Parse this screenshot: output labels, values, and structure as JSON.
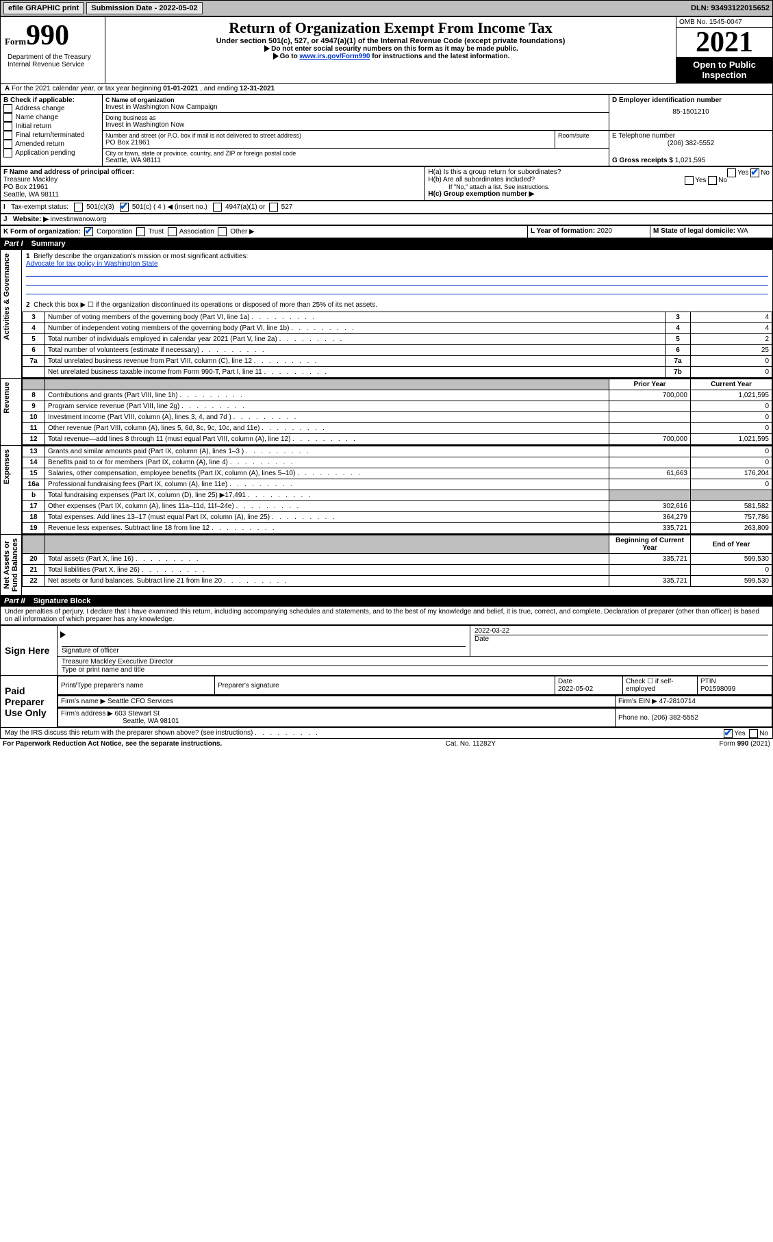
{
  "topbar": {
    "efile": "efile GRAPHIC print",
    "submission": "Submission Date - 2022-05-02",
    "dln": "DLN: 93493122015652"
  },
  "header": {
    "form_prefix": "Form",
    "form_number": "990",
    "title": "Return of Organization Exempt From Income Tax",
    "subtitle": "Under section 501(c), 527, or 4947(a)(1) of the Internal Revenue Code (except private foundations)",
    "note1": "Do not enter social security numbers on this form as it may be made public.",
    "note2_pre": "Go to ",
    "note2_link": "www.irs.gov/Form990",
    "note2_post": " for instructions and the latest information.",
    "dept": "Department of the Treasury\nInternal Revenue Service",
    "omb": "OMB No. 1545-0047",
    "year": "2021",
    "open": "Open to Public Inspection"
  },
  "periodA": {
    "text_pre": "For the 2021 calendar year, or tax year beginning ",
    "begin": "01-01-2021",
    "mid": " , and ending ",
    "end": "12-31-2021"
  },
  "boxB": {
    "label": "B Check if applicable:",
    "opts": [
      "Address change",
      "Name change",
      "Initial return",
      "Final return/terminated",
      "Amended return",
      "Application pending"
    ]
  },
  "boxC": {
    "name_lbl": "C Name of organization",
    "name": "Invest in Washington Now Campaign",
    "dba_lbl": "Doing business as",
    "dba": "Invest in Washington Now",
    "street_lbl": "Number and street (or P.O. box if mail is not delivered to street address)",
    "room_lbl": "Room/suite",
    "street": "PO Box 21961",
    "city_lbl": "City or town, state or province, country, and ZIP or foreign postal code",
    "city": "Seattle, WA  98111"
  },
  "boxD": {
    "lbl": "D Employer identification number",
    "val": "85-1501210"
  },
  "boxE": {
    "lbl": "E Telephone number",
    "val": "(206) 382-5552"
  },
  "boxG": {
    "lbl": "G Gross receipts $",
    "val": "1,021,595"
  },
  "boxF": {
    "lbl": "F Name and address of principal officer:",
    "name": "Treasure Mackley",
    "addr1": "PO Box 21961",
    "addr2": "Seattle, WA  98111"
  },
  "boxH": {
    "a": "H(a)  Is this a group return for subordinates?",
    "b": "H(b)  Are all subordinates included?",
    "bnote": "If \"No,\" attach a list. See instructions.",
    "c": "H(c)  Group exemption number ▶",
    "yes": "Yes",
    "no": "No"
  },
  "boxI": {
    "lbl": "Tax-exempt status:",
    "o1": "501(c)(3)",
    "o2": "501(c) ( 4 ) ◀ (insert no.)",
    "o3": "4947(a)(1) or",
    "o4": "527"
  },
  "boxJ": {
    "lbl": "Website: ▶",
    "val": "investinwanow.org"
  },
  "boxK": {
    "lbl": "K Form of organization:",
    "o1": "Corporation",
    "o2": "Trust",
    "o3": "Association",
    "o4": "Other ▶"
  },
  "boxL": {
    "lbl": "L Year of formation:",
    "val": "2020"
  },
  "boxM": {
    "lbl": "M State of legal domicile:",
    "val": "WA"
  },
  "part1": {
    "no": "Part I",
    "title": "Summary"
  },
  "summary": {
    "q1_lbl": "Briefly describe the organization's mission or most significant activities:",
    "q1_link": "Advocate for tax policy in Washington State",
    "q2": "Check this box ▶ ☐  if the organization discontinued its operations or disposed of more than 25% of its net assets.",
    "rows_gov": [
      {
        "n": "3",
        "d": "Number of voting members of the governing body (Part VI, line 1a)",
        "b": "3",
        "v": "4"
      },
      {
        "n": "4",
        "d": "Number of independent voting members of the governing body (Part VI, line 1b)",
        "b": "4",
        "v": "4"
      },
      {
        "n": "5",
        "d": "Total number of individuals employed in calendar year 2021 (Part V, line 2a)",
        "b": "5",
        "v": "2"
      },
      {
        "n": "6",
        "d": "Total number of volunteers (estimate if necessary)",
        "b": "6",
        "v": "25"
      },
      {
        "n": "7a",
        "d": "Total unrelated business revenue from Part VIII, column (C), line 12",
        "b": "7a",
        "v": "0"
      },
      {
        "n": "",
        "d": "Net unrelated business taxable income from Form 990-T, Part I, line 11",
        "b": "7b",
        "v": "0"
      }
    ],
    "hdr_prior": "Prior Year",
    "hdr_curr": "Current Year",
    "hdr_boc": "Beginning of Current Year",
    "hdr_eoy": "End of Year",
    "rows_rev": [
      {
        "n": "8",
        "d": "Contributions and grants (Part VIII, line 1h)",
        "p": "700,000",
        "c": "1,021,595"
      },
      {
        "n": "9",
        "d": "Program service revenue (Part VIII, line 2g)",
        "p": "",
        "c": "0"
      },
      {
        "n": "10",
        "d": "Investment income (Part VIII, column (A), lines 3, 4, and 7d )",
        "p": "",
        "c": "0"
      },
      {
        "n": "11",
        "d": "Other revenue (Part VIII, column (A), lines 5, 6d, 8c, 9c, 10c, and 11e)",
        "p": "",
        "c": "0"
      },
      {
        "n": "12",
        "d": "Total revenue—add lines 8 through 11 (must equal Part VIII, column (A), line 12)",
        "p": "700,000",
        "c": "1,021,595"
      }
    ],
    "rows_exp": [
      {
        "n": "13",
        "d": "Grants and similar amounts paid (Part IX, column (A), lines 1–3 )",
        "p": "",
        "c": "0"
      },
      {
        "n": "14",
        "d": "Benefits paid to or for members (Part IX, column (A), line 4)",
        "p": "",
        "c": "0"
      },
      {
        "n": "15",
        "d": "Salaries, other compensation, employee benefits (Part IX, column (A), lines 5–10)",
        "p": "61,663",
        "c": "176,204"
      },
      {
        "n": "16a",
        "d": "Professional fundraising fees (Part IX, column (A), line 11e)",
        "p": "",
        "c": "0"
      },
      {
        "n": "b",
        "d": "Total fundraising expenses (Part IX, column (D), line 25) ▶17,491",
        "p": "SHADE",
        "c": "SHADE"
      },
      {
        "n": "17",
        "d": "Other expenses (Part IX, column (A), lines 11a–11d, 11f–24e)",
        "p": "302,616",
        "c": "581,582"
      },
      {
        "n": "18",
        "d": "Total expenses. Add lines 13–17 (must equal Part IX, column (A), line 25)",
        "p": "364,279",
        "c": "757,786"
      },
      {
        "n": "19",
        "d": "Revenue less expenses. Subtract line 18 from line 12",
        "p": "335,721",
        "c": "263,809"
      }
    ],
    "rows_net": [
      {
        "n": "20",
        "d": "Total assets (Part X, line 16)",
        "p": "335,721",
        "c": "599,530"
      },
      {
        "n": "21",
        "d": "Total liabilities (Part X, line 26)",
        "p": "",
        "c": "0"
      },
      {
        "n": "22",
        "d": "Net assets or fund balances. Subtract line 21 from line 20",
        "p": "335,721",
        "c": "599,530"
      }
    ],
    "sidelabels": {
      "gov": "Activities & Governance",
      "rev": "Revenue",
      "exp": "Expenses",
      "net": "Net Assets or\nFund Balances"
    }
  },
  "part2": {
    "no": "Part II",
    "title": "Signature Block",
    "penalty": "Under penalties of perjury, I declare that I have examined this return, including accompanying schedules and statements, and to the best of my knowledge and belief, it is true, correct, and complete. Declaration of preparer (other than officer) is based on all information of which preparer has any knowledge."
  },
  "sign": {
    "sign_here": "Sign Here",
    "sig_officer": "Signature of officer",
    "date": "Date",
    "date_val": "2022-03-22",
    "officer_name": "Treasure Mackley  Executive Director",
    "type_name": "Type or print name and title",
    "paid": "Paid Preparer Use Only",
    "prep_name_lbl": "Print/Type preparer's name",
    "prep_sig_lbl": "Preparer's signature",
    "prep_date_lbl": "Date",
    "prep_date_val": "2022-05-02",
    "check_lbl": "Check ☐ if self-employed",
    "ptin_lbl": "PTIN",
    "ptin_val": "P01598099",
    "firm_name_lbl": "Firm's name    ▶",
    "firm_name": "Seattle CFO Services",
    "firm_ein_lbl": "Firm's EIN ▶",
    "firm_ein": "47-2810714",
    "firm_addr_lbl": "Firm's address ▶",
    "firm_addr": "603 Stewart St",
    "firm_city": "Seattle, WA  98101",
    "phone_lbl": "Phone no.",
    "phone_val": "(206) 382-5552",
    "discuss": "May the IRS discuss this return with the preparer shown above? (see instructions)"
  },
  "footer": {
    "pra": "For Paperwork Reduction Act Notice, see the separate instructions.",
    "cat": "Cat. No. 11282Y",
    "form": "Form 990 (2021)"
  }
}
